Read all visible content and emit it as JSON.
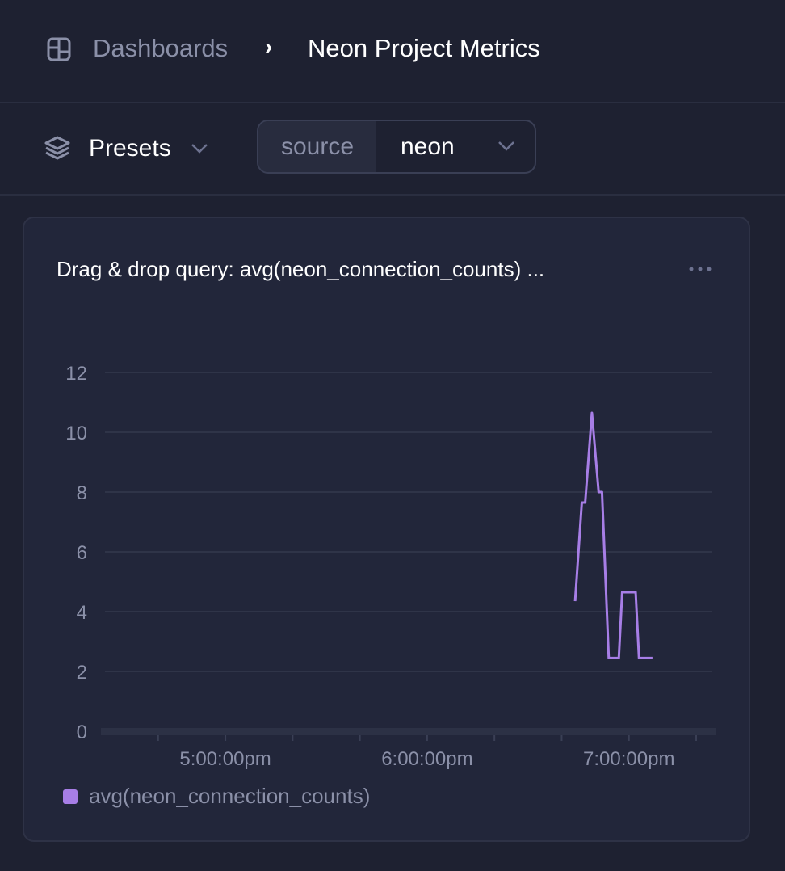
{
  "breadcrumb": {
    "root": "Dashboards",
    "separator": "›",
    "current": "Neon Project Metrics"
  },
  "toolbar": {
    "presets_label": "Presets",
    "filter": {
      "key": "source",
      "value": "neon"
    }
  },
  "panel": {
    "title": "Drag & drop query: avg(neon_connection_counts) ...",
    "menu_icon": "ellipsis-icon"
  },
  "colors": {
    "background": "#1e2131",
    "card": "#22263a",
    "series": "#a77ee6",
    "muted": "#8b90a8"
  },
  "chart_data": {
    "type": "line",
    "title": "Drag & drop query: avg(neon_connection_counts) ...",
    "xlabel": "",
    "ylabel": "",
    "xlim": [
      "16:23",
      "19:26"
    ],
    "ylim": [
      0,
      12
    ],
    "y_ticks": [
      0,
      2,
      4,
      6,
      8,
      10,
      12
    ],
    "x_ticks": [
      {
        "time": "17:00",
        "label": "5:00:00pm"
      },
      {
        "time": "18:00",
        "label": "6:00:00pm"
      },
      {
        "time": "19:00",
        "label": "7:00:00pm"
      }
    ],
    "grid": true,
    "legend": "bottom-left",
    "series": [
      {
        "name": "avg(neon_connection_counts)",
        "color": "#a77ee6",
        "x": [
          "18:44",
          "18:46",
          "18:47",
          "18:49",
          "18:51",
          "18:52",
          "18:54",
          "18:57",
          "18:58",
          "19:02",
          "19:03",
          "19:07"
        ],
        "values": [
          4.35,
          7.65,
          7.65,
          10.65,
          8.0,
          8.0,
          2.45,
          2.45,
          4.65,
          4.65,
          2.45,
          2.45
        ]
      }
    ]
  }
}
